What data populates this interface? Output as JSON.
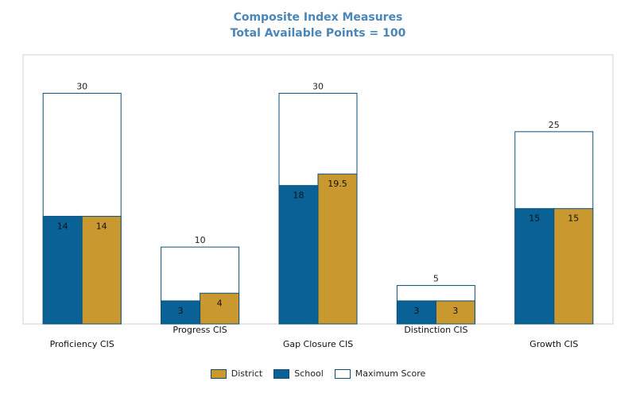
{
  "chart_data": {
    "type": "bar",
    "title": "Composite Index Measures",
    "subtitle": "Total Available Points = 100",
    "categories": [
      "Proficiency CIS",
      "Progress CIS",
      "Gap Closure CIS",
      "Distinction CIS",
      "Growth CIS"
    ],
    "series": [
      {
        "name": "School",
        "values": [
          14,
          3,
          18,
          3,
          15
        ],
        "color": "#0a6196"
      },
      {
        "name": "District",
        "values": [
          14,
          4,
          19.5,
          3,
          15
        ],
        "color": "#c9992f"
      },
      {
        "name": "Maximum Score",
        "values": [
          30,
          10,
          30,
          5,
          25
        ],
        "color": "#ffffff"
      }
    ],
    "school_labels": [
      "14",
      "3",
      "18",
      "3",
      "15"
    ],
    "district_labels": [
      "14",
      "4",
      "19.5",
      "3",
      "15"
    ],
    "max_labels": [
      "30",
      "10",
      "30",
      "5",
      "25"
    ],
    "ylim": [
      0,
      35
    ],
    "grid": false,
    "legend_position": "bottom",
    "legend": [
      {
        "name": "District",
        "color": "#c9992f"
      },
      {
        "name": "School",
        "color": "#0a6196"
      },
      {
        "name": "Maximum Score",
        "color": "#ffffff"
      }
    ]
  }
}
